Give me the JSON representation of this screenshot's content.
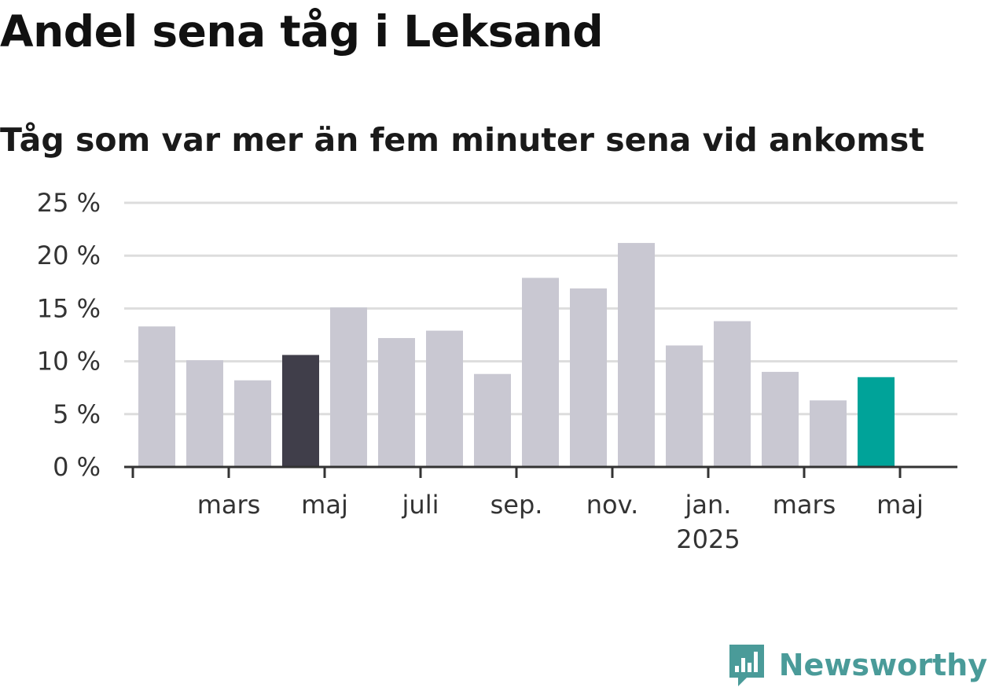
{
  "chart_data": {
    "type": "bar",
    "title": "Andel sena tåg i Leksand",
    "subtitle": "Tåg som var mer än fem minuter sena vid ankomst",
    "values": [
      13.3,
      10.1,
      8.2,
      10.6,
      15.1,
      12.2,
      12.9,
      8.8,
      17.9,
      16.9,
      21.2,
      11.5,
      13.8,
      9.0,
      6.3,
      8.5
    ],
    "x_tick_labels": [
      {
        "index": 2,
        "label": "mars",
        "sublabel": ""
      },
      {
        "index": 4,
        "label": "maj",
        "sublabel": ""
      },
      {
        "index": 6,
        "label": "juli",
        "sublabel": ""
      },
      {
        "index": 8,
        "label": "sep.",
        "sublabel": ""
      },
      {
        "index": 10,
        "label": "nov.",
        "sublabel": ""
      },
      {
        "index": 12,
        "label": "jan.",
        "sublabel": "2025"
      },
      {
        "index": 14,
        "label": "mars",
        "sublabel": ""
      },
      {
        "index": 16,
        "label": "maj",
        "sublabel": ""
      }
    ],
    "y_ticks": [
      {
        "value": 0,
        "label": "0 %"
      },
      {
        "value": 5,
        "label": "5 %"
      },
      {
        "value": 10,
        "label": "10 %"
      },
      {
        "value": 15,
        "label": "15 %"
      },
      {
        "value": 20,
        "label": "20 %"
      },
      {
        "value": 25,
        "label": "25 %"
      }
    ],
    "ylim": [
      0,
      25
    ],
    "grid": true,
    "highlights": {
      "dark": 3,
      "accent": 15
    },
    "colors": {
      "default": "#c9c8d2",
      "dark": "#403e4a",
      "accent": "#00a399",
      "grid": "#dddddd",
      "axis": "#333333"
    }
  },
  "brand": {
    "name": "Newsworthy",
    "color": "#4a9b99"
  }
}
